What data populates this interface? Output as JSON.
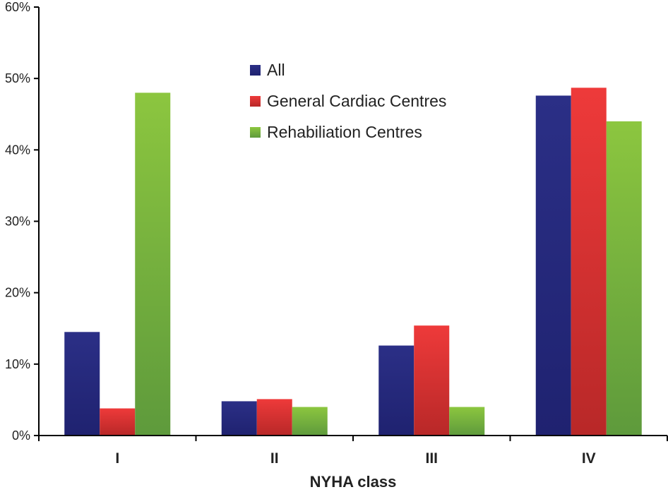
{
  "chart_data": {
    "type": "bar",
    "title": "",
    "xlabel": "NYHA class",
    "ylabel": "",
    "categories": [
      "I",
      "II",
      "III",
      "IV"
    ],
    "ylim": [
      0,
      60
    ],
    "yticks": [
      0,
      10,
      20,
      30,
      40,
      50,
      60
    ],
    "ytick_suffix": "%",
    "grid": false,
    "legend_position": "top-center",
    "series": [
      {
        "name": "All",
        "values": [
          14.5,
          4.8,
          12.6,
          47.6
        ],
        "color": "#2b2f86",
        "color_dark": "#1f2270"
      },
      {
        "name": "General Cardiac Centres",
        "values": [
          3.8,
          5.1,
          15.4,
          48.7
        ],
        "color": "#ee3a3a",
        "color_dark": "#b82828"
      },
      {
        "name": "Rehabiliation Centres",
        "values": [
          48.0,
          4.0,
          4.0,
          44.0
        ],
        "color": "#8cc63f",
        "color_dark": "#5e9a3c"
      }
    ]
  }
}
